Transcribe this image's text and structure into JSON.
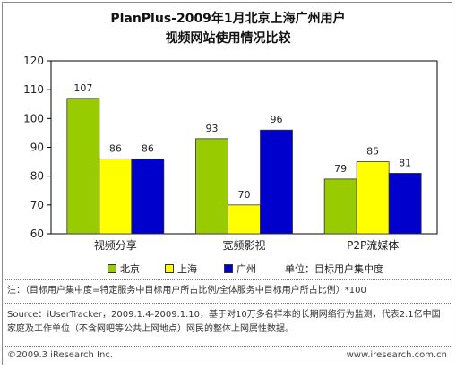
{
  "header": {
    "title_line1": "PlanPlus-2009年1月北京上海广州用户",
    "title_line2": "视频网站使用情况比较"
  },
  "legend": {
    "items": [
      {
        "label": "北京",
        "color": "#99cc00"
      },
      {
        "label": "上海",
        "color": "#ffff00"
      },
      {
        "label": "广州",
        "color": "#0000cc"
      }
    ],
    "unit": "单位：目标用户集中度"
  },
  "notes": {
    "note": "注：（目标用户集中度=特定服务中目标用户所占比例/全体服务中目标用户所占比例）*100",
    "source": "Source：iUserTracker，2009.1.4-2009.1.10，基于对10万多名样本的长期网络行为监测，代表2.1亿中国家庭及工作单位（不含网吧等公共上网地点）网民的整体上网属性数据。",
    "copyright": "©2009.3 iResearch Inc.",
    "site": "www.iresearch.com.cn"
  },
  "chart_data": {
    "type": "bar",
    "categories": [
      "视频分享",
      "宽频影视",
      "P2P流媒体"
    ],
    "series": [
      {
        "name": "北京",
        "color": "#99cc00",
        "values": [
          107,
          93,
          79
        ]
      },
      {
        "name": "上海",
        "color": "#ffff00",
        "values": [
          86,
          70,
          85
        ]
      },
      {
        "name": "广州",
        "color": "#0000cc",
        "values": [
          86,
          96,
          81
        ]
      }
    ],
    "yticks": [
      60,
      70,
      80,
      90,
      100,
      110,
      120
    ],
    "ylim": [
      60,
      120
    ],
    "grid": false,
    "legend_position": "bottom"
  }
}
